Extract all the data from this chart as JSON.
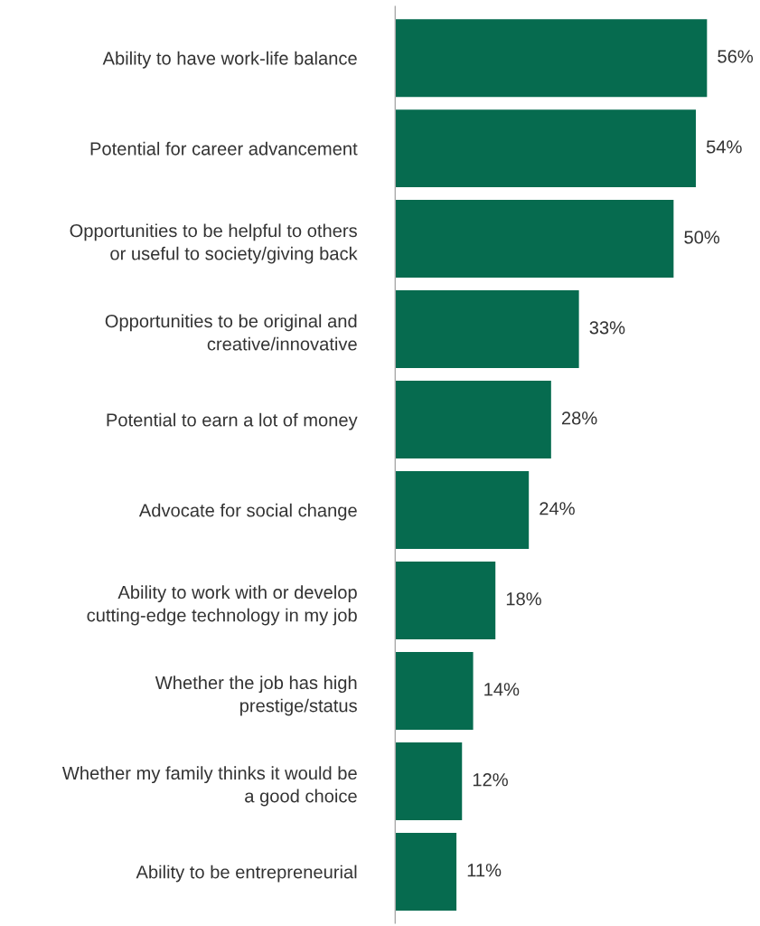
{
  "chart_data": {
    "type": "bar",
    "orientation": "horizontal",
    "categories": [
      "Ability to have work-life balance",
      "Potential for career advancement",
      "Opportunities to be helpful to others\nor useful to society/giving back",
      "Opportunities to be original and\ncreative/innovative",
      "Potential to earn a lot of money",
      "Advocate for social change",
      "Ability to work with or develop\ncutting-edge technology in my job",
      "Whether the job has high\nprestige/status",
      "Whether my family thinks it would be\na good choice",
      "Ability to be entrepreneurial"
    ],
    "values": [
      56,
      54,
      50,
      33,
      28,
      24,
      18,
      14,
      12,
      11
    ],
    "value_labels": [
      "56%",
      "54%",
      "50%",
      "33%",
      "28%",
      "24%",
      "18%",
      "14%",
      "12%",
      "11%"
    ],
    "color": "#066b4f",
    "grid": false,
    "legend": false
  }
}
